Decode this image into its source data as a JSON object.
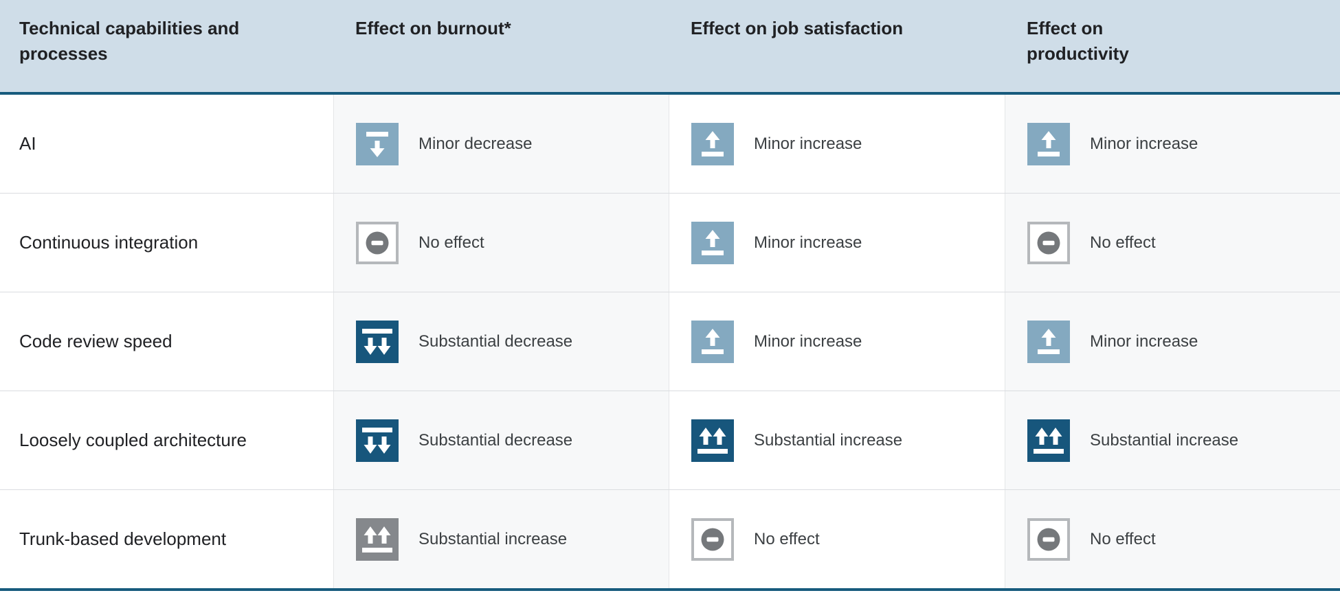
{
  "header": {
    "columns": [
      "Technical capabilities and processes",
      "Effect on burnout*",
      "Effect on job satisfaction",
      "Effect on productivity"
    ]
  },
  "colors": {
    "header_bg": "#cfdde8",
    "header_border": "#175b7d",
    "minor_effect_blue": "#84a9c0",
    "substantial_effect_blue": "#17567c",
    "negative_effect_gray": "#85888c",
    "no_effect_border": "#b5b8bb",
    "no_effect_circle": "#75787b",
    "alt_column_bg": "#f7f8f9",
    "row_divider": "#dadce0",
    "heading_text": "#202124",
    "body_text": "#3c4043"
  },
  "table": {
    "rows": [
      {
        "label": "AI",
        "effects": [
          {
            "icon": "minor-decrease",
            "tone": "light",
            "label": "Minor decrease"
          },
          {
            "icon": "minor-increase",
            "tone": "light",
            "label": "Minor increase"
          },
          {
            "icon": "minor-increase",
            "tone": "light",
            "label": "Minor increase"
          }
        ]
      },
      {
        "label": "Continuous integration",
        "effects": [
          {
            "icon": "no-effect",
            "tone": "neutral",
            "label": "No effect"
          },
          {
            "icon": "minor-increase",
            "tone": "light",
            "label": "Minor increase"
          },
          {
            "icon": "no-effect",
            "tone": "neutral",
            "label": "No effect"
          }
        ]
      },
      {
        "label": "Code review speed",
        "effects": [
          {
            "icon": "substantial-decrease",
            "tone": "dark",
            "label": "Substantial decrease"
          },
          {
            "icon": "minor-increase",
            "tone": "light",
            "label": "Minor increase"
          },
          {
            "icon": "minor-increase",
            "tone": "light",
            "label": "Minor increase"
          }
        ]
      },
      {
        "label": "Loosely coupled architecture",
        "effects": [
          {
            "icon": "substantial-decrease",
            "tone": "dark",
            "label": "Substantial decrease"
          },
          {
            "icon": "substantial-increase",
            "tone": "dark",
            "label": "Substantial increase"
          },
          {
            "icon": "substantial-increase",
            "tone": "dark",
            "label": "Substantial increase"
          }
        ]
      },
      {
        "label": "Trunk-based development",
        "effects": [
          {
            "icon": "substantial-increase",
            "tone": "gray",
            "label": "Substantial increase"
          },
          {
            "icon": "no-effect",
            "tone": "neutral",
            "label": "No effect"
          },
          {
            "icon": "no-effect",
            "tone": "neutral",
            "label": "No effect"
          }
        ]
      }
    ]
  },
  "chart_data": {
    "type": "table",
    "columns": [
      "Technical capabilities and processes",
      "Effect on burnout*",
      "Effect on job satisfaction",
      "Effect on productivity"
    ],
    "rows": [
      [
        "AI",
        "Minor decrease",
        "Minor increase",
        "Minor increase"
      ],
      [
        "Continuous integration",
        "No effect",
        "Minor increase",
        "No effect"
      ],
      [
        "Code review speed",
        "Substantial decrease",
        "Minor increase",
        "Minor increase"
      ],
      [
        "Loosely coupled architecture",
        "Substantial decrease",
        "Substantial increase",
        "Substantial increase"
      ],
      [
        "Trunk-based development",
        "Substantial increase",
        "No effect",
        "No effect"
      ]
    ]
  }
}
